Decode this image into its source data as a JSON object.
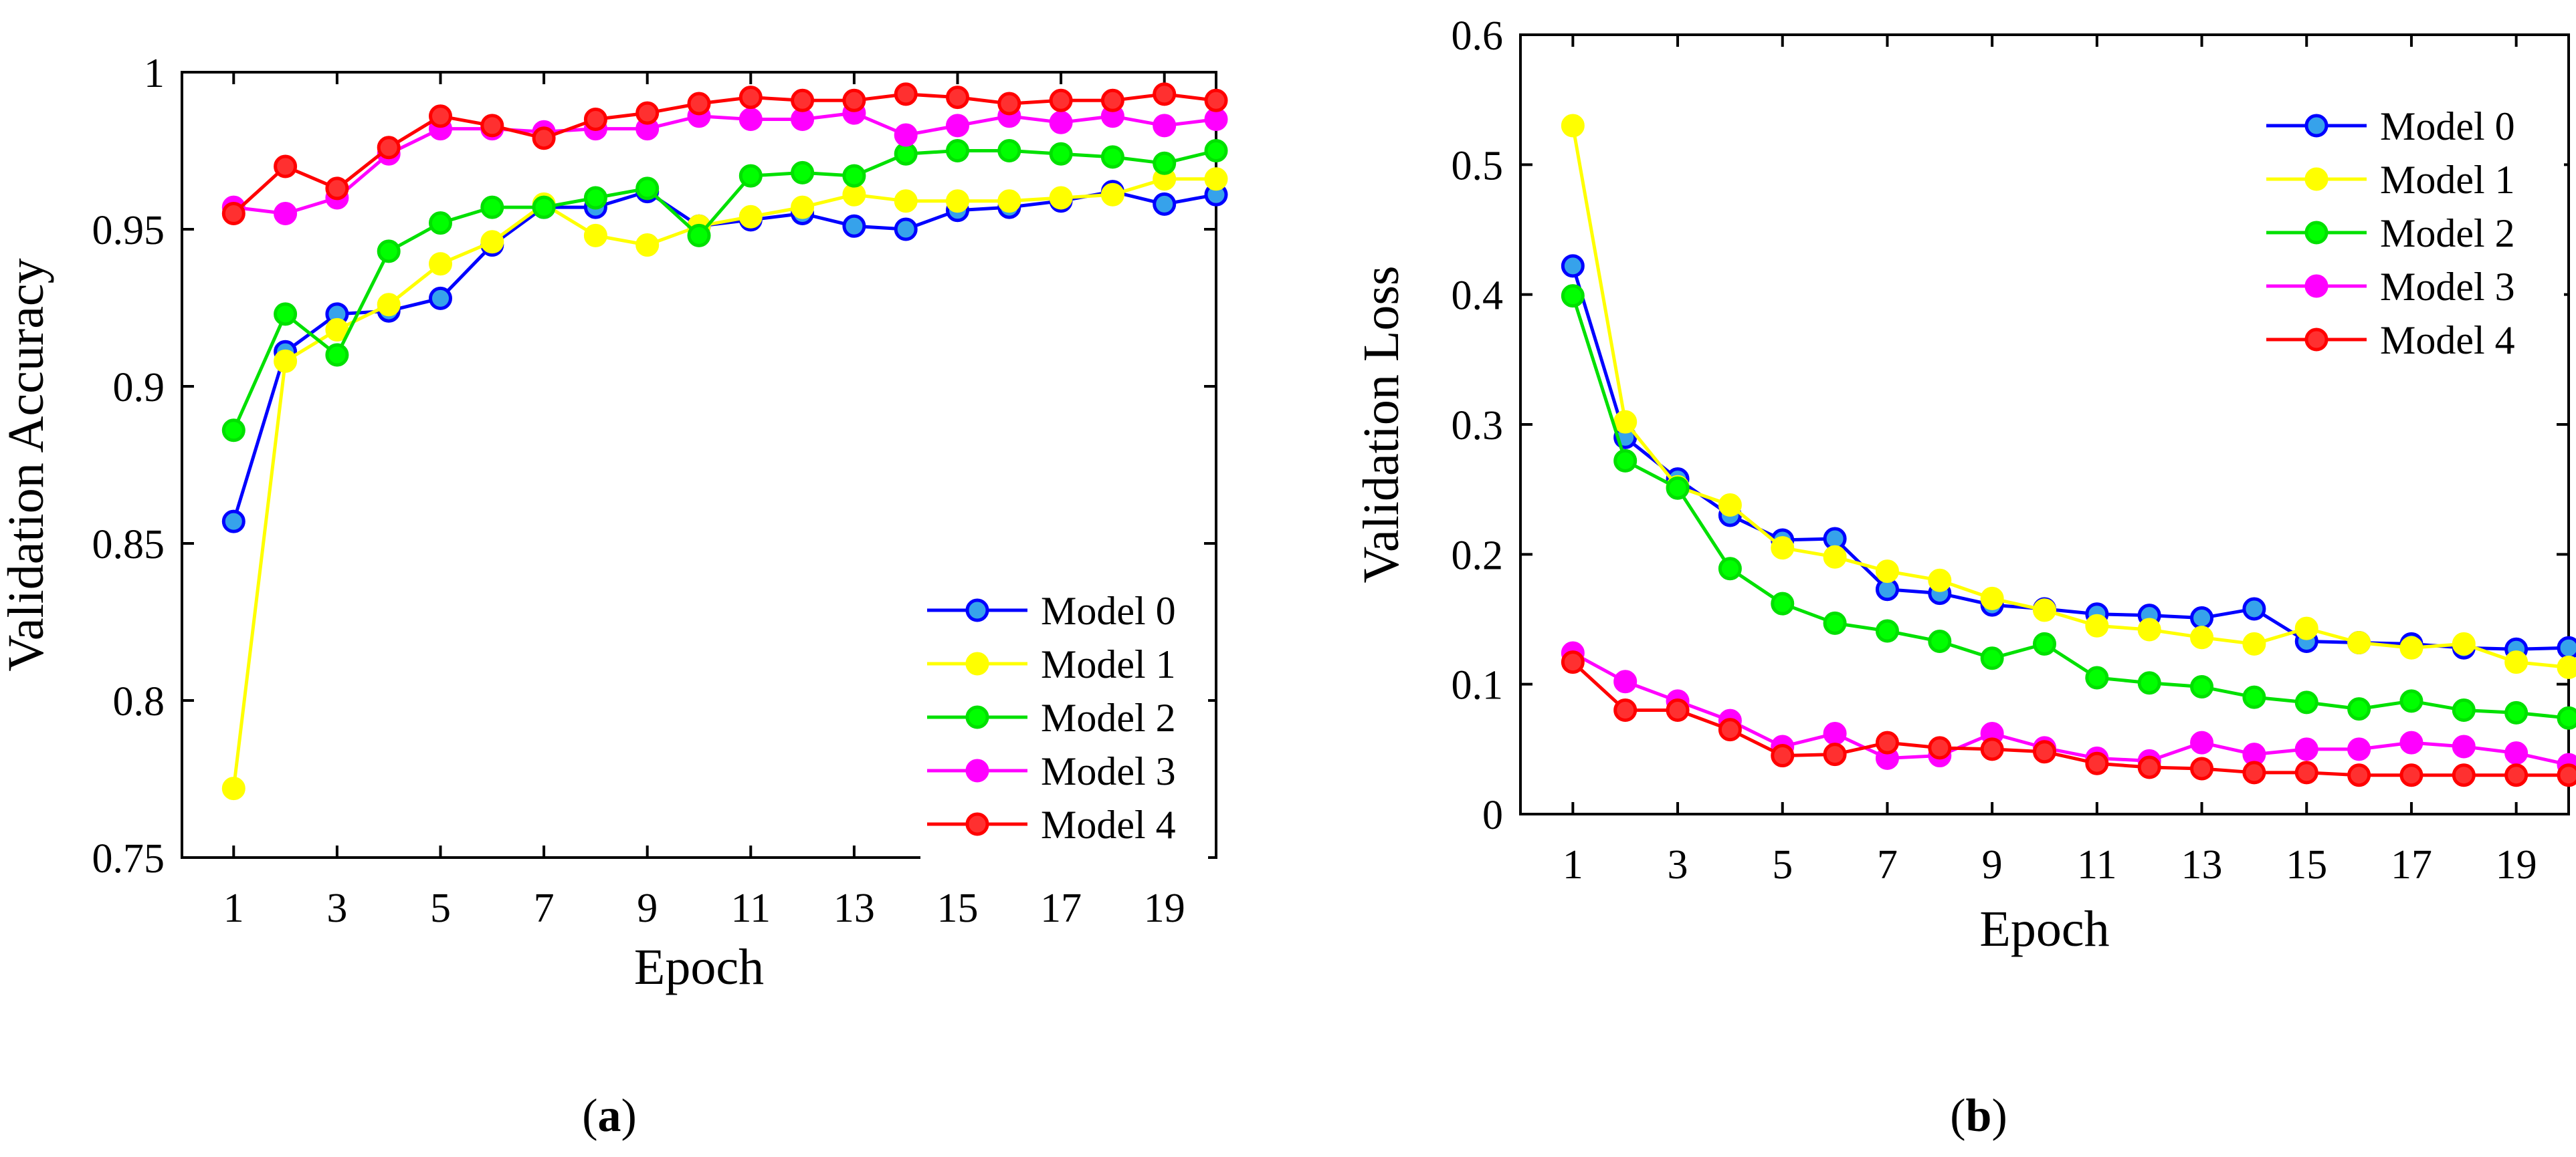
{
  "chart_data": [
    {
      "type": "line",
      "panel_label": "a",
      "xlabel": "Epoch",
      "ylabel": "Validation Accuracy",
      "xlim": [
        0,
        20
      ],
      "ylim": [
        0.75,
        1.0
      ],
      "x_ticks": [
        1,
        3,
        5,
        7,
        9,
        11,
        13,
        15,
        17,
        19
      ],
      "y_ticks": [
        0.75,
        0.8,
        0.85,
        0.9,
        0.95,
        1
      ],
      "y_tick_labels": [
        "0.75",
        "0.8",
        "0.85",
        "0.9",
        "0.95",
        "1"
      ],
      "legend_position": "bottom-right",
      "grid": false,
      "x": [
        1,
        2,
        3,
        4,
        5,
        6,
        7,
        8,
        9,
        10,
        11,
        12,
        13,
        14,
        15,
        16,
        17,
        18,
        19,
        20
      ],
      "series": [
        {
          "name": "Model 0",
          "color": "#0000ff",
          "marker_fill": "#36a2eb",
          "values": [
            0.857,
            0.911,
            0.923,
            0.924,
            0.928,
            0.945,
            0.957,
            0.957,
            0.962,
            0.951,
            0.953,
            0.955,
            0.951,
            0.95,
            0.956,
            0.957,
            0.959,
            0.962,
            0.958,
            0.961
          ]
        },
        {
          "name": "Model 1",
          "color": "#ffff00",
          "marker_fill": "#ffff00",
          "values": [
            0.772,
            0.908,
            0.918,
            0.926,
            0.939,
            0.946,
            0.958,
            0.948,
            0.945,
            0.951,
            0.954,
            0.957,
            0.961,
            0.959,
            0.959,
            0.959,
            0.96,
            0.961,
            0.966,
            0.966
          ]
        },
        {
          "name": "Model 2",
          "color": "#00e000",
          "marker_fill": "#00ff00",
          "values": [
            0.886,
            0.923,
            0.91,
            0.943,
            0.952,
            0.957,
            0.957,
            0.96,
            0.963,
            0.948,
            0.967,
            0.968,
            0.967,
            0.974,
            0.975,
            0.975,
            0.974,
            0.973,
            0.971,
            0.975
          ]
        },
        {
          "name": "Model 3",
          "color": "#ff00ff",
          "marker_fill": "#ff00ff",
          "values": [
            0.957,
            0.955,
            0.96,
            0.974,
            0.982,
            0.982,
            0.981,
            0.982,
            0.982,
            0.986,
            0.985,
            0.985,
            0.987,
            0.98,
            0.983,
            0.986,
            0.984,
            0.986,
            0.983,
            0.985
          ]
        },
        {
          "name": "Model 4",
          "color": "#ff0000",
          "marker_fill": "#ff3030",
          "values": [
            0.955,
            0.97,
            0.963,
            0.976,
            0.986,
            0.983,
            0.979,
            0.985,
            0.987,
            0.99,
            0.992,
            0.991,
            0.991,
            0.993,
            0.992,
            0.99,
            0.991,
            0.991,
            0.993,
            0.991
          ]
        }
      ]
    },
    {
      "type": "line",
      "panel_label": "b",
      "xlabel": "Epoch",
      "ylabel": "Validation Loss",
      "xlim": [
        0,
        20
      ],
      "ylim": [
        0,
        0.6
      ],
      "x_ticks": [
        1,
        3,
        5,
        7,
        9,
        11,
        13,
        15,
        17,
        19
      ],
      "y_ticks": [
        0,
        0.1,
        0.2,
        0.3,
        0.4,
        0.5,
        0.6
      ],
      "y_tick_labels": [
        "0",
        "0.1",
        "0.2",
        "0.3",
        "0.4",
        "0.5",
        "0.6"
      ],
      "legend_position": "top-right",
      "grid": false,
      "x": [
        1,
        2,
        3,
        4,
        5,
        6,
        7,
        8,
        9,
        10,
        11,
        12,
        13,
        14,
        15,
        16,
        17,
        18,
        19,
        20
      ],
      "series": [
        {
          "name": "Model 0",
          "color": "#0000ff",
          "marker_fill": "#36a2eb",
          "values": [
            0.422,
            0.29,
            0.258,
            0.23,
            0.211,
            0.212,
            0.173,
            0.17,
            0.161,
            0.158,
            0.154,
            0.153,
            0.151,
            0.158,
            0.133,
            0.132,
            0.131,
            0.128,
            0.127,
            0.128
          ]
        },
        {
          "name": "Model 1",
          "color": "#ffff00",
          "marker_fill": "#ffff00",
          "values": [
            0.53,
            0.302,
            0.252,
            0.238,
            0.205,
            0.198,
            0.187,
            0.18,
            0.166,
            0.157,
            0.145,
            0.142,
            0.136,
            0.131,
            0.143,
            0.132,
            0.128,
            0.131,
            0.117,
            0.113
          ]
        },
        {
          "name": "Model 2",
          "color": "#00e000",
          "marker_fill": "#00ff00",
          "values": [
            0.399,
            0.272,
            0.251,
            0.189,
            0.162,
            0.147,
            0.141,
            0.133,
            0.12,
            0.131,
            0.105,
            0.101,
            0.098,
            0.09,
            0.086,
            0.081,
            0.087,
            0.08,
            0.078,
            0.074
          ]
        },
        {
          "name": "Model 3",
          "color": "#ff00ff",
          "marker_fill": "#ff00ff",
          "values": [
            0.124,
            0.102,
            0.087,
            0.072,
            0.052,
            0.062,
            0.043,
            0.045,
            0.062,
            0.051,
            0.043,
            0.041,
            0.055,
            0.046,
            0.05,
            0.05,
            0.055,
            0.052,
            0.047,
            0.038
          ]
        },
        {
          "name": "Model 4",
          "color": "#ff0000",
          "marker_fill": "#ff3030",
          "values": [
            0.117,
            0.08,
            0.08,
            0.065,
            0.045,
            0.046,
            0.055,
            0.051,
            0.05,
            0.048,
            0.039,
            0.036,
            0.035,
            0.032,
            0.032,
            0.03,
            0.03,
            0.03,
            0.03,
            0.03
          ]
        }
      ]
    }
  ],
  "figure": {
    "caption_a": "a",
    "caption_b": "b"
  }
}
